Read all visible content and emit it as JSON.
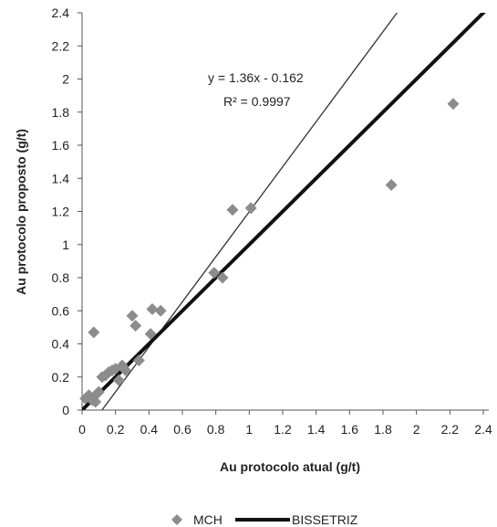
{
  "chart_data": {
    "type": "scatter",
    "xlabel": "Au protocolo atual (g/t)",
    "ylabel": "Au protocolo proposto (g/t)",
    "xlim": [
      0,
      2.4
    ],
    "ylim": [
      0,
      2.4
    ],
    "xticks": [
      "0",
      "0.2",
      "0.4",
      "0.6",
      "0.8",
      "1",
      "1.2",
      "1.4",
      "1.6",
      "1.8",
      "2",
      "2.2",
      "2.4"
    ],
    "yticks": [
      "0",
      "0.2",
      "0.4",
      "0.6",
      "0.8",
      "1",
      "1.2",
      "1.4",
      "1.6",
      "1.8",
      "2",
      "2.2",
      "2.4"
    ],
    "grid": false,
    "legend_position": "bottom",
    "series": [
      {
        "name": "MCH",
        "kind": "scatter",
        "marker": "diamond",
        "color": "#8c8c8c",
        "x": [
          0.02,
          0.04,
          0.06,
          0.07,
          0.08,
          0.09,
          0.1,
          0.12,
          0.14,
          0.16,
          0.18,
          0.2,
          0.22,
          0.24,
          0.26,
          0.3,
          0.32,
          0.34,
          0.41,
          0.42,
          0.47,
          0.79,
          0.84,
          0.9,
          1.01,
          1.85,
          2.22
        ],
        "y": [
          0.07,
          0.09,
          0.06,
          0.47,
          0.05,
          0.1,
          0.11,
          0.2,
          0.21,
          0.23,
          0.24,
          0.25,
          0.18,
          0.27,
          0.24,
          0.57,
          0.51,
          0.3,
          0.46,
          0.61,
          0.6,
          0.83,
          0.8,
          1.21,
          1.22,
          1.36,
          1.85
        ]
      },
      {
        "name": "BISSETRIZ",
        "kind": "line",
        "color": "#111111",
        "x": [
          0,
          2.5
        ],
        "y": [
          0,
          2.5
        ]
      }
    ],
    "trendline": {
      "equation": "y = 1.36x - 0.162",
      "r2": "R² = 0.9997",
      "slope": 1.36,
      "intercept": -0.162,
      "color": "#333333"
    }
  }
}
